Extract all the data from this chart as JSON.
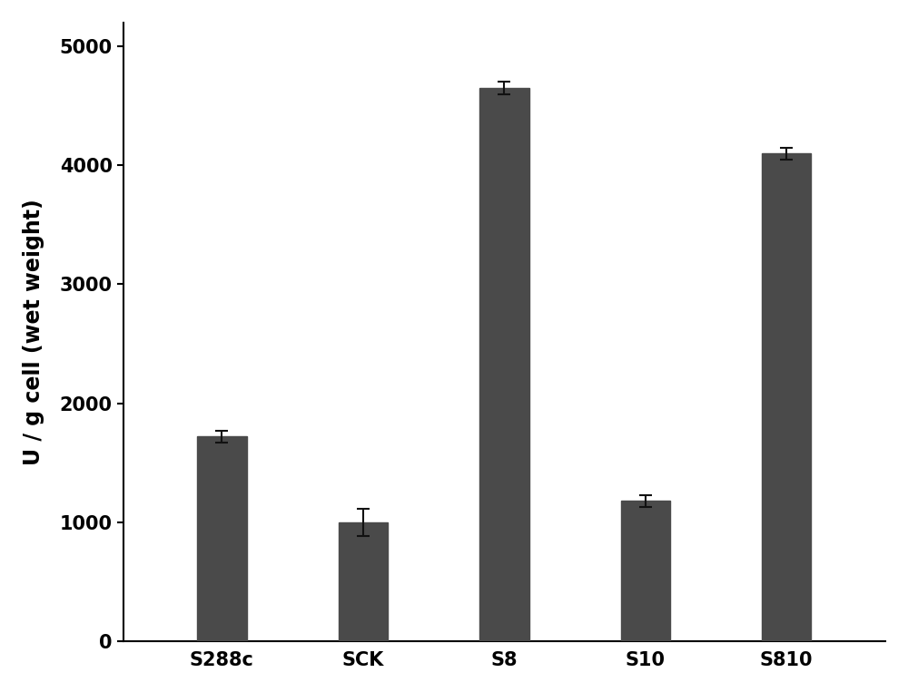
{
  "categories": [
    "S288c",
    "SCK",
    "S8",
    "S10",
    "S810"
  ],
  "values": [
    1720,
    1000,
    4650,
    1180,
    4100
  ],
  "errors": [
    50,
    115,
    55,
    50,
    50
  ],
  "bar_color": "#4a4a4a",
  "ylabel": "U / g cell (wet weight)",
  "ylim": [
    0,
    5200
  ],
  "yticks": [
    0,
    1000,
    2000,
    3000,
    4000,
    5000
  ],
  "background_color": "#ffffff",
  "bar_width": 0.35,
  "figsize": [
    10.0,
    7.63
  ],
  "dpi": 100,
  "ylabel_fontsize": 17,
  "tick_fontsize": 15,
  "xtick_fontsize": 15
}
